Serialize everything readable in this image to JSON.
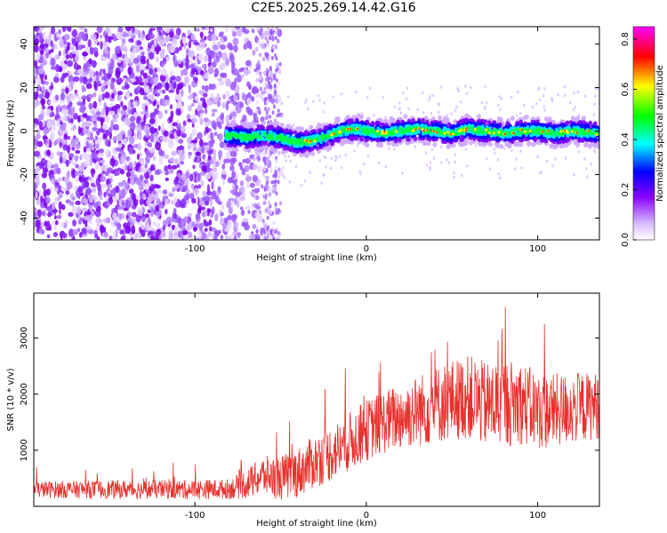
{
  "title": "C2E5.2025.269.14.42.G16",
  "chart_data": [
    {
      "type": "heatmap",
      "name": "spectrogram",
      "xlabel": "Height of straight line (km)",
      "ylabel": "Frequency (Hz)",
      "xlim": [
        -194,
        136
      ],
      "ylim": [
        -50,
        48
      ],
      "xticks": [
        -100,
        0,
        100
      ],
      "xtick_labels": [
        "-100",
        "0",
        "100"
      ],
      "yticks": [
        -40,
        -20,
        0,
        20,
        40
      ],
      "ytick_labels": [
        "-40",
        "-20",
        "0",
        "20",
        "40"
      ],
      "noise_region_x": [
        -194,
        -50
      ],
      "signal_start_x": -82,
      "signal_centerline": {
        "x": [
          -82,
          -70,
          -60,
          -50,
          -42,
          -35,
          -25,
          -15,
          -5,
          0,
          10,
          20,
          30,
          40,
          50,
          60,
          70,
          80,
          90,
          100,
          110,
          120,
          136
        ],
        "y": [
          -2,
          -3,
          -2,
          -3,
          -5,
          -5,
          -3,
          0,
          1,
          0,
          -1,
          0,
          1,
          0,
          -1,
          1,
          0,
          -1,
          0,
          0,
          -1,
          0,
          -1
        ]
      },
      "colorbar": {
        "label": "Normalized spectral amplitude",
        "range": [
          0.0,
          0.85
        ],
        "ticks": [
          0.0,
          0.2,
          0.4,
          0.6,
          0.8
        ],
        "tick_labels": [
          "0.0",
          "0.2",
          "0.4",
          "0.6",
          "0.8"
        ],
        "colors": [
          "#ffffff",
          "#c7a0ff",
          "#8a00ff",
          "#0000ff",
          "#00ffff",
          "#00ff00",
          "#ffff00",
          "#ff0000",
          "#ff00ff"
        ]
      }
    },
    {
      "type": "line",
      "name": "snr",
      "xlabel": "Height of straight line (km)",
      "ylabel": "SNR (10 * v/v)",
      "xlim": [
        -194,
        136
      ],
      "ylim": [
        0,
        3800
      ],
      "xticks": [
        -100,
        0,
        100
      ],
      "xtick_labels": [
        "-100",
        "0",
        "100"
      ],
      "yticks": [
        1000,
        2000,
        3000
      ],
      "ytick_labels": [
        "1000",
        "2000",
        "3000"
      ],
      "color": "#e8302c",
      "envelope": {
        "x": [
          -194,
          -100,
          -80,
          -70,
          -60,
          -50,
          -40,
          -30,
          -20,
          -10,
          0,
          10,
          20,
          30,
          40,
          50,
          60,
          70,
          80,
          90,
          100,
          110,
          120,
          136
        ],
        "y": [
          300,
          300,
          310,
          400,
          550,
          500,
          600,
          800,
          950,
          1150,
          1350,
          1500,
          1600,
          1700,
          1800,
          1900,
          1950,
          1800,
          1850,
          1850,
          1700,
          1700,
          1750,
          1800
        ]
      },
      "spread": {
        "x": [
          -194,
          -80,
          -60,
          -40,
          -20,
          0,
          20,
          40,
          60,
          80,
          100,
          136
        ],
        "y": [
          150,
          180,
          350,
          450,
          500,
          550,
          600,
          700,
          750,
          800,
          700,
          600
        ]
      }
    }
  ]
}
